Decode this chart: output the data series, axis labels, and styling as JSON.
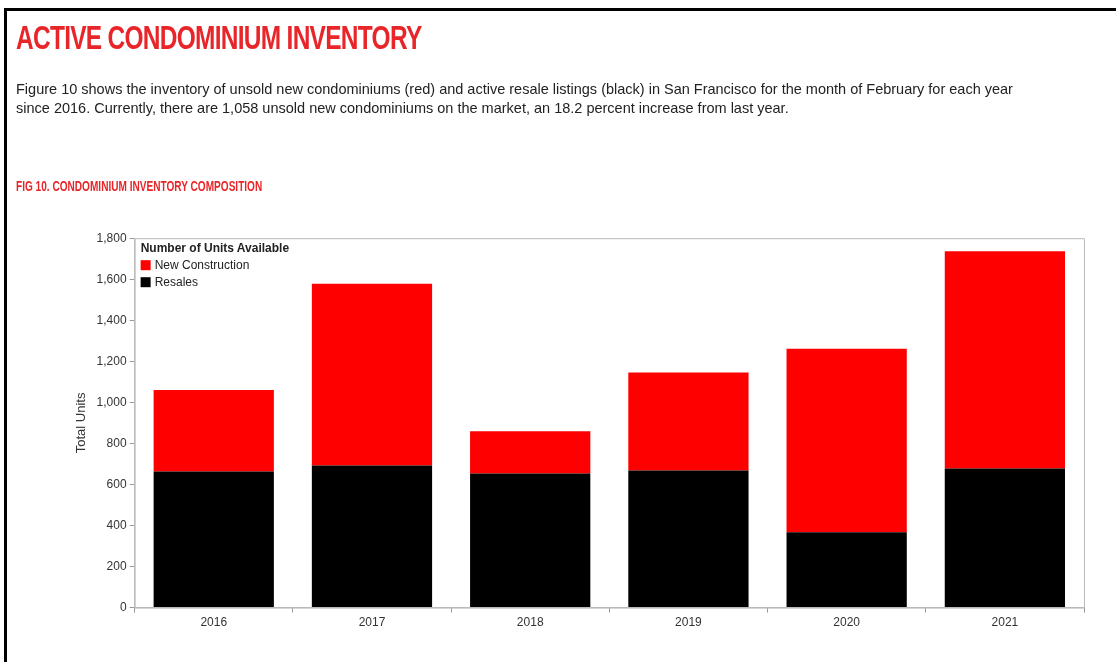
{
  "chart_data": {
    "type": "bar",
    "title": "ACTIVE CONDOMINIUM INVENTORY",
    "subtitle": "FIG 10. CONDOMINIUM INVENTORY COMPOSITION",
    "annotations": [
      "Figure 10 shows the inventory of unsold new condominiums (red) and active resale listings (black) in San Francisco for the month of February for each year since 2016. Currently, there are 1,058 unsold new condominiums on the market, an 18.2 percent increase from last year."
    ],
    "ylabel": "Total Units",
    "legend_title": "Number of Units Available",
    "legend": "top left",
    "stacked": true,
    "grid": false,
    "categories": [
      "2016",
      "2017",
      "2018",
      "2019",
      "2020",
      "2021"
    ],
    "series": [
      {
        "name": "Resales",
        "color": "#000000",
        "values": [
          663,
          693,
          653,
          668,
          367,
          678
        ]
      },
      {
        "name": "New Construction",
        "color": "#ff0000",
        "values": [
          397,
          885,
          206,
          478,
          894,
          1058
        ]
      }
    ],
    "ylim": [
      0,
      1800
    ],
    "yticks": [
      0,
      200,
      400,
      600,
      800,
      {
        "value": 1000,
        "label": "1,000"
      },
      {
        "value": 1200,
        "label": "1,200"
      },
      {
        "value": 1400,
        "label": "1,400"
      },
      {
        "value": 1600,
        "label": "1,600"
      },
      {
        "value": 1800,
        "label": "1,800"
      }
    ]
  }
}
